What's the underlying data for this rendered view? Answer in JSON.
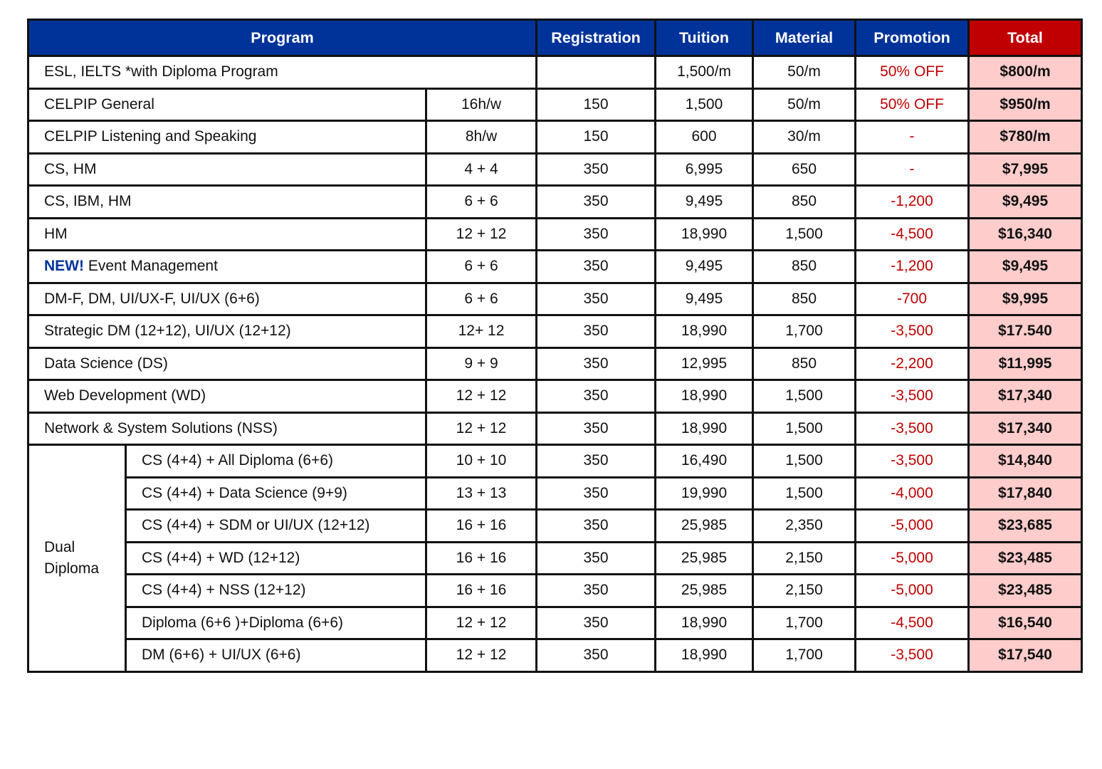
{
  "headers": {
    "program": "Program",
    "registration": "Registration",
    "tuition": "Tuition",
    "material": "Material",
    "promotion": "Promotion",
    "total": "Total"
  },
  "colors": {
    "header_blue": "#003399",
    "total_header_red": "#c00000",
    "total_cell_pink": "#ffcccc",
    "promotion_text_red": "#c00000",
    "new_badge_blue": "#003399"
  },
  "row_esl": {
    "program": "ESL, IELTS *with Diploma Program",
    "registration": "",
    "tuition": "1,500/m",
    "material": "50/m",
    "promotion": "50% OFF",
    "total": "$800/m"
  },
  "rows": [
    {
      "badge": "",
      "program": "CELPIP General",
      "duration": "16h/w",
      "registration": "150",
      "tuition": "1,500",
      "material": "50/m",
      "promotion": "50% OFF",
      "total": "$950/m"
    },
    {
      "badge": "",
      "program": "CELPIP Listening and Speaking",
      "duration": "8h/w",
      "registration": "150",
      "tuition": "600",
      "material": "30/m",
      "promotion": "-",
      "total": "$780/m"
    },
    {
      "badge": "",
      "program": "CS, HM",
      "duration": "4 + 4",
      "registration": "350",
      "tuition": "6,995",
      "material": "650",
      "promotion": "-",
      "total": "$7,995"
    },
    {
      "badge": "",
      "program": "CS, IBM, HM",
      "duration": "6 + 6",
      "registration": "350",
      "tuition": "9,495",
      "material": "850",
      "promotion": "-1,200",
      "total": "$9,495"
    },
    {
      "badge": "",
      "program": "HM",
      "duration": "12 + 12",
      "registration": "350",
      "tuition": "18,990",
      "material": "1,500",
      "promotion": "-4,500",
      "total": "$16,340"
    },
    {
      "badge": "NEW!",
      "program": " Event Management",
      "duration": "6 + 6",
      "registration": "350",
      "tuition": "9,495",
      "material": "850",
      "promotion": "-1,200",
      "total": "$9,495"
    },
    {
      "badge": "",
      "program": "DM-F, DM, UI/UX-F, UI/UX (6+6)",
      "duration": "6 + 6",
      "registration": "350",
      "tuition": "9,495",
      "material": "850",
      "promotion": "-700",
      "total": "$9,995"
    },
    {
      "badge": "",
      "program": "Strategic DM (12+12), UI/UX (12+12)",
      "duration": "12+ 12",
      "registration": "350",
      "tuition": "18,990",
      "material": "1,700",
      "promotion": "-3,500",
      "total": "$17.540"
    },
    {
      "badge": "",
      "program": "Data Science (DS)",
      "duration": "9 + 9",
      "registration": "350",
      "tuition": "12,995",
      "material": "850",
      "promotion": "-2,200",
      "total": "$11,995"
    },
    {
      "badge": "",
      "program": "Web Development (WD)",
      "duration": "12 + 12",
      "registration": "350",
      "tuition": "18,990",
      "material": "1,500",
      "promotion": "-3,500",
      "total": "$17,340"
    },
    {
      "badge": "",
      "program": "Network & System Solutions (NSS)",
      "duration": "12 + 12",
      "registration": "350",
      "tuition": "18,990",
      "material": "1,500",
      "promotion": "-3,500",
      "total": "$17,340"
    }
  ],
  "dual": {
    "label": "Dual Diploma",
    "rows": [
      {
        "program": "CS (4+4) + All Diploma (6+6)",
        "duration": "10 + 10",
        "registration": "350",
        "tuition": "16,490",
        "material": "1,500",
        "promotion": "-3,500",
        "total": "$14,840"
      },
      {
        "program": "CS (4+4) + Data Science (9+9)",
        "duration": "13 + 13",
        "registration": "350",
        "tuition": "19,990",
        "material": "1,500",
        "promotion": "-4,000",
        "total": "$17,840"
      },
      {
        "program": "CS (4+4) + SDM or UI/UX (12+12)",
        "duration": "16 + 16",
        "registration": "350",
        "tuition": "25,985",
        "material": "2,350",
        "promotion": "-5,000",
        "total": "$23,685"
      },
      {
        "program": "CS (4+4) + WD (12+12)",
        "duration": "16 + 16",
        "registration": "350",
        "tuition": "25,985",
        "material": "2,150",
        "promotion": "-5,000",
        "total": "$23,485"
      },
      {
        "program": "CS (4+4) + NSS (12+12)",
        "duration": "16 + 16",
        "registration": "350",
        "tuition": "25,985",
        "material": "2,150",
        "promotion": "-5,000",
        "total": "$23,485"
      },
      {
        "program": "Diploma (6+6 )+Diploma (6+6)",
        "duration": "12 + 12",
        "registration": "350",
        "tuition": "18,990",
        "material": "1,700",
        "promotion": "-4,500",
        "total": "$16,540"
      },
      {
        "program": "DM (6+6) + UI/UX (6+6)",
        "duration": "12 + 12",
        "registration": "350",
        "tuition": "18,990",
        "material": "1,700",
        "promotion": "-3,500",
        "total": "$17,540"
      }
    ]
  }
}
